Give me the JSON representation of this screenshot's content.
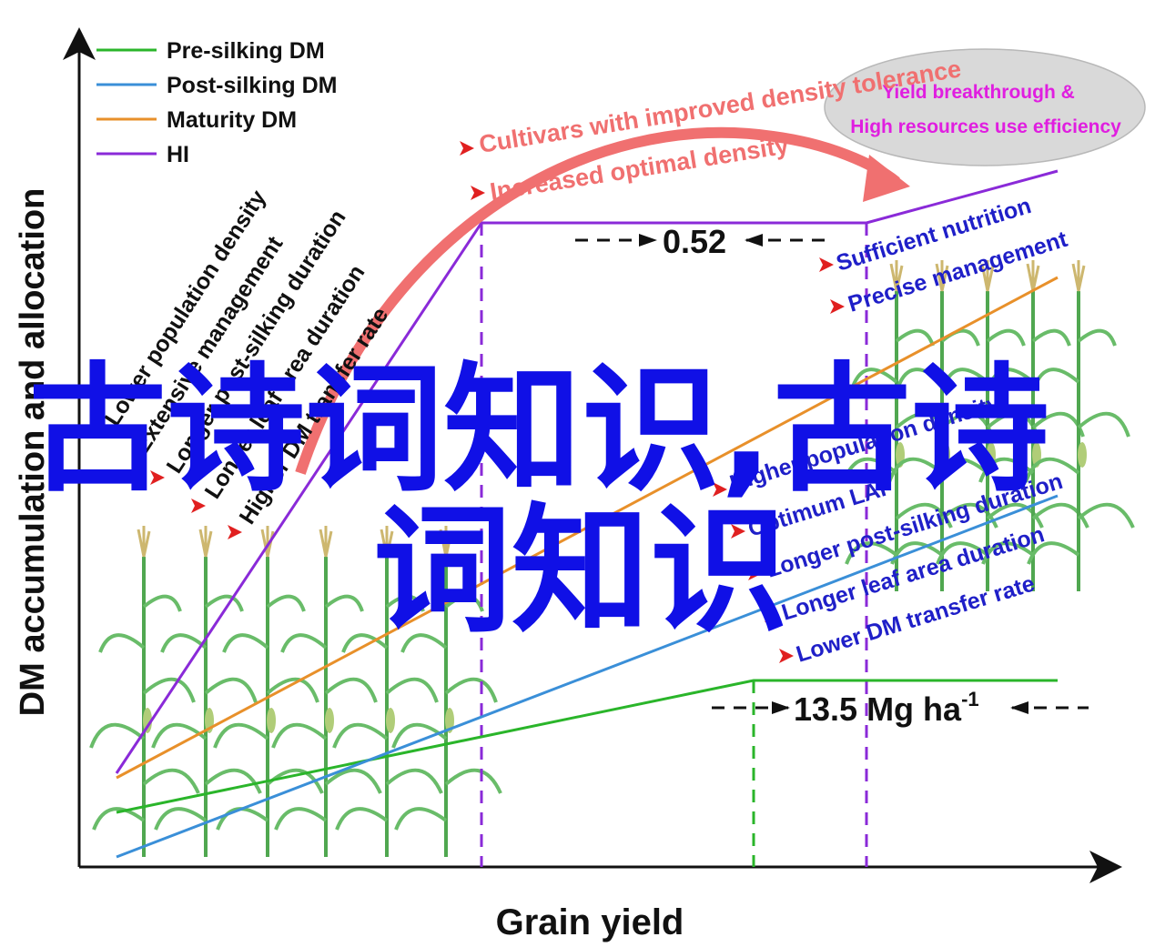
{
  "axes": {
    "y_label": "DM accumulation and allocation",
    "x_label": "Grain yield"
  },
  "legend": [
    {
      "label": "Pre-silking DM",
      "color": "#2ab52a"
    },
    {
      "label": "Post-silking DM",
      "color": "#3a8fd8"
    },
    {
      "label": "Maturity DM",
      "color": "#e8902a"
    },
    {
      "label": "HI",
      "color": "#8a2ad8"
    }
  ],
  "left_notes": [
    "Lower population density",
    "Extensive management",
    "Longer post-silking duration",
    "Longer leaf area duration",
    "Higher DM transfer rate"
  ],
  "right_notes": [
    "Sufficient nutrition",
    "Precise management",
    "Higher population density",
    "Optimum LAI",
    "Longer  post-silking duration",
    "Longer leaf area duration",
    "Lower DM transfer rate"
  ],
  "top_notes": [
    "Cultivars with improved density tolerance",
    "Increased optimal density"
  ],
  "ellipse": {
    "line1": "Yield breakthrough &",
    "line2": "High resources use efficiency"
  },
  "values": {
    "hi_value": "0.52",
    "yield_value": "13.5 Mg ha",
    "yield_exp": "-1"
  },
  "watermark": {
    "line1": "古诗词知识,古诗",
    "line2": "词知识"
  },
  "colors": {
    "axis": "#111111",
    "arrow_red": "#f07070",
    "pointer_red": "#e02020",
    "note_blue": "#1f1fc8",
    "ellipse_fill": "#d9d9d9",
    "corn": "#4caf50"
  }
}
